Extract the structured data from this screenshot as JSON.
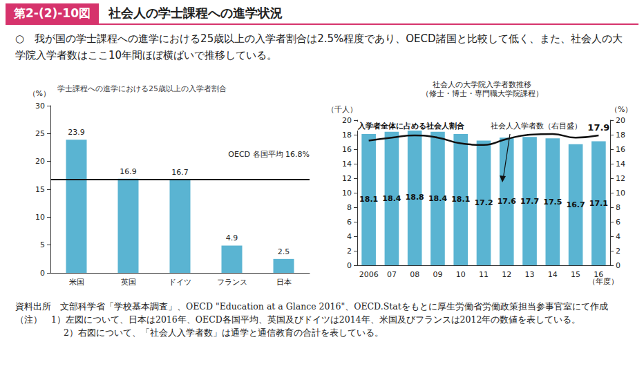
{
  "header": {
    "label": "第2-(2)-10図",
    "title": "社会人の学士課程への進学状況"
  },
  "summary": "○　我が国の学士課程への進学における25歳以上の入学者割合は2.5%程度であり、OECD諸国と比較して低く、また、社会人の大学院入学者数はここ10年間ほぼ横ばいで推移している。",
  "chart_data": [
    {
      "type": "bar",
      "title": "学士課程への進学における25歳以上の入学者割合",
      "y_label": "（%）",
      "categories": [
        "米国",
        "英国",
        "ドイツ",
        "フランス",
        "日本"
      ],
      "values": [
        23.9,
        16.9,
        16.7,
        4.9,
        2.5
      ],
      "color": "#5ab4d2",
      "ylim": [
        0,
        30
      ],
      "yticks": [
        0,
        5,
        10,
        15,
        20,
        25,
        30
      ],
      "grid": false,
      "data_labels": true,
      "reference_line": {
        "value": 16.8,
        "label": "OECD 各国平均 16.8%"
      }
    },
    {
      "type": "bar",
      "title": "社会人の大学院入学者数推移",
      "subtitle": "（修士・博士・専門職大学院課程）",
      "y_label": "（千人）",
      "y2_label": "（%）",
      "x_label": "（年度）",
      "categories": [
        "2006",
        "07",
        "08",
        "09",
        "10",
        "11",
        "12",
        "13",
        "14",
        "15",
        "16"
      ],
      "series": [
        {
          "name": "社会人入学者数（右目盛）",
          "type": "bar",
          "color": "#5ab4d2",
          "values": [
            18.1,
            18.4,
            18.8,
            18.4,
            18.1,
            17.2,
            17.6,
            17.7,
            17.5,
            16.7,
            17.1
          ],
          "data_labels": true
        },
        {
          "name": "入学者全体に占める社会人割合",
          "type": "line",
          "axis": "y2",
          "color": "#111111",
          "values": [
            17.2,
            17.6,
            17.9,
            17.6,
            16.8,
            16.6,
            17.4,
            18.0,
            18.1,
            17.6,
            17.9
          ],
          "value_labels": [
            null,
            null,
            null,
            null,
            null,
            null,
            null,
            null,
            null,
            null,
            "17.9"
          ]
        }
      ],
      "ylim": [
        0,
        20
      ],
      "yticks": [
        0,
        2,
        4,
        6,
        8,
        10,
        12,
        14,
        16,
        18,
        20
      ],
      "y2lim": [
        0,
        20
      ],
      "y2ticks": [
        0,
        2,
        4,
        6,
        8,
        10,
        12,
        14,
        16,
        18,
        20
      ],
      "grid": false,
      "legend": false
    }
  ],
  "source": "資料出所　文部科学省「学校基本調査」、OECD \"Education at a Glance 2016\"、OECD.Statをもとに厚生労働省労働政策担当参事官室にて作成",
  "notes": [
    "（注）　1）左図について、日本は2016年、OECD各国平均、英国及びドイツは2014年、米国及びフランスは2012年の数値を表している。",
    "2）右図について、「社会人入学者数」は通学と通信教育の合計を表している。"
  ]
}
